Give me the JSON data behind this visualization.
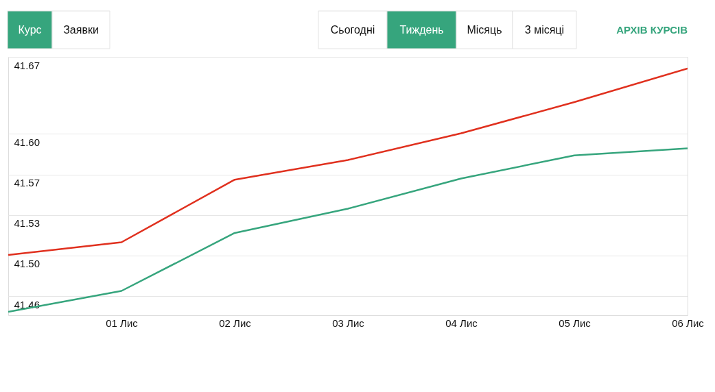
{
  "chart_data": {
    "type": "line",
    "categories": [
      null,
      "01 Лис",
      "02 Лис",
      "03 Лис",
      "04 Лис",
      "05 Лис",
      "06 Лис"
    ],
    "series": [
      {
        "color": "#e0301e",
        "values": [
          41.498,
          41.509,
          41.563,
          41.58,
          41.603,
          41.63,
          41.659
        ]
      },
      {
        "color": "#36a57d",
        "values": [
          41.449,
          41.467,
          41.517,
          41.538,
          41.564,
          41.584,
          41.59
        ]
      }
    ],
    "ylim": [
      41.446,
      41.669
    ],
    "yticks": [
      {
        "value": 41.4625,
        "label": "41.46"
      },
      {
        "value": 41.4975,
        "label": "41.50"
      },
      {
        "value": 41.5325,
        "label": "41.53"
      },
      {
        "value": 41.5675,
        "label": "41.57"
      },
      {
        "value": 41.6025,
        "label": "41.60"
      },
      {
        "value": 41.669,
        "label": "41.67"
      }
    ],
    "grid": "y",
    "marker": "none",
    "line_style": "solid",
    "annotations": [
      "Курс",
      "Заявки",
      "Сьогодні",
      "Тиждень",
      "Місяць",
      "3 місяці",
      "АРХІВ КУРСІВ"
    ]
  }
}
